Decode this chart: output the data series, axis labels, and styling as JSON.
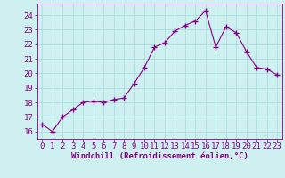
{
  "x": [
    0,
    1,
    2,
    3,
    4,
    5,
    6,
    7,
    8,
    9,
    10,
    11,
    12,
    13,
    14,
    15,
    16,
    17,
    18,
    19,
    20,
    21,
    22,
    23
  ],
  "y": [
    16.5,
    16.0,
    17.0,
    17.5,
    18.0,
    18.1,
    18.0,
    18.2,
    18.3,
    19.3,
    20.4,
    21.8,
    22.1,
    22.9,
    23.3,
    23.6,
    24.3,
    21.8,
    23.2,
    22.8,
    21.5,
    20.4,
    20.3,
    19.9
  ],
  "line_color": "#880088",
  "marker": "+",
  "marker_size": 4,
  "bg_color": "#cff0f0",
  "grid_color": "#aadddd",
  "xlabel": "Windchill (Refroidissement éolien,°C)",
  "xlabel_color": "#880088",
  "tick_color": "#880088",
  "spine_color": "#880088",
  "ylim": [
    15.5,
    24.8
  ],
  "xlim": [
    -0.5,
    23.5
  ],
  "yticks": [
    16,
    17,
    18,
    19,
    20,
    21,
    22,
    23,
    24
  ],
  "xticks": [
    0,
    1,
    2,
    3,
    4,
    5,
    6,
    7,
    8,
    9,
    10,
    11,
    12,
    13,
    14,
    15,
    16,
    17,
    18,
    19,
    20,
    21,
    22,
    23
  ],
  "tick_fontsize": 6.5,
  "xlabel_fontsize": 6.5
}
